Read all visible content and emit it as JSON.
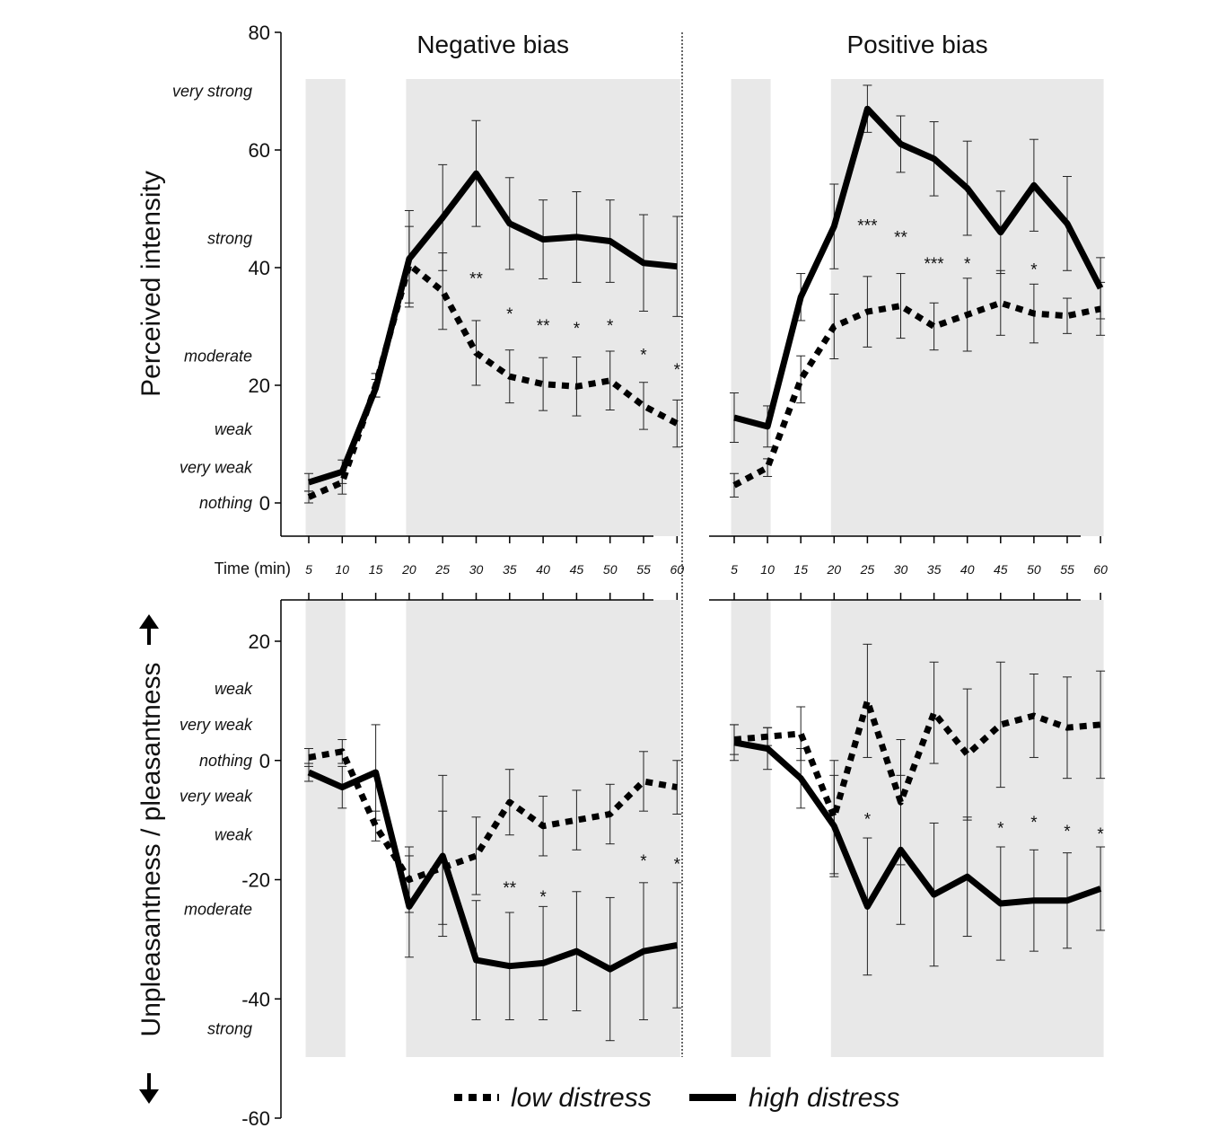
{
  "chart_data": {
    "type": "line",
    "time_label": "Time (min)",
    "x": [
      5,
      10,
      15,
      20,
      25,
      30,
      35,
      40,
      45,
      50,
      55,
      60
    ],
    "x_tick_labels": [
      "5",
      "10",
      "15",
      "20",
      "25",
      "30",
      "35",
      "40",
      "45",
      "50",
      "55",
      "60"
    ],
    "shaded_time_ranges": [
      [
        5,
        10
      ],
      [
        20,
        60
      ]
    ],
    "legend": {
      "placement": "bottom",
      "entries": [
        "low distress",
        "high distress"
      ]
    },
    "colors": {
      "shade": "#e8e8e8",
      "line": "#000000"
    },
    "columns": [
      "Negative bias",
      "Positive bias"
    ],
    "rows": [
      {
        "ylabel": "Perceived intensity",
        "ylim": [
          0,
          80
        ],
        "yticks": [
          "0",
          "20",
          "40",
          "60",
          "80"
        ],
        "qualitative_labels": [
          {
            "text": "very strong",
            "y": 70
          },
          {
            "text": "strong",
            "y": 45
          },
          {
            "text": "moderate",
            "y": 25
          },
          {
            "text": "weak",
            "y": 12.5
          },
          {
            "text": "very weak",
            "y": 6
          },
          {
            "text": "nothing",
            "y": 0
          }
        ]
      },
      {
        "ylabel": "Unpleasantness / pleasantness",
        "ylim": [
          -60,
          20
        ],
        "yticks": [
          "-60",
          "-40",
          "-20",
          "0",
          "20"
        ],
        "qualitative_labels": [
          {
            "text": "weak",
            "y": 12
          },
          {
            "text": "very weak",
            "y": 6
          },
          {
            "text": "nothing",
            "y": 0
          },
          {
            "text": "very weak",
            "y": -6
          },
          {
            "text": "weak",
            "y": -12.5
          },
          {
            "text": "moderate",
            "y": -25
          },
          {
            "text": "strong",
            "y": -45
          }
        ]
      }
    ],
    "panels": [
      {
        "title": "Negative bias",
        "row": 0,
        "col": 0,
        "series": [
          {
            "name": "low distress",
            "values": [
              1,
              3.5,
              20,
              40.5,
              36,
              25.5,
              21.5,
              20.2,
              19.8,
              20.8,
              16.5,
              13.5
            ],
            "err": [
              1,
              2,
              2,
              6.5,
              6.5,
              5.5,
              4.5,
              4.5,
              5,
              5,
              4,
              4
            ]
          },
          {
            "name": "high distress",
            "values": [
              3.5,
              5.3,
              19.5,
              41.5,
              48.5,
              56,
              47.5,
              44.8,
              45.2,
              44.5,
              40.8,
              40.2
            ],
            "err": [
              1.5,
              2,
              1.5,
              8.2,
              9,
              9,
              7.8,
              6.7,
              7.7,
              7,
              8.2,
              8.5
            ]
          }
        ],
        "significance": [
          {
            "x": 30,
            "label": "**",
            "y": 39
          },
          {
            "x": 35,
            "label": "*",
            "y": 33
          },
          {
            "x": 40,
            "label": "**",
            "y": 31
          },
          {
            "x": 45,
            "label": "*",
            "y": 30.5
          },
          {
            "x": 50,
            "label": "*",
            "y": 31
          },
          {
            "x": 55,
            "label": "*",
            "y": 26
          },
          {
            "x": 60,
            "label": "*",
            "y": 23.5
          }
        ]
      },
      {
        "title": "Positive bias",
        "row": 0,
        "col": 1,
        "series": [
          {
            "name": "low distress",
            "values": [
              3,
              6,
              21,
              30,
              32.5,
              33.5,
              30,
              32,
              34,
              32.2,
              31.8,
              33
            ],
            "err": [
              2,
              1.5,
              4,
              5.5,
              6,
              5.5,
              4,
              6.2,
              5.5,
              5,
              3,
              4.5
            ]
          },
          {
            "name": "high distress",
            "values": [
              14.5,
              13,
              35,
              47,
              67,
              61,
              58.5,
              53.5,
              46,
              54,
              47.5,
              36.5
            ],
            "err": [
              4.2,
              3.5,
              4,
              7.2,
              4,
              4.8,
              6.3,
              8,
              7,
              7.8,
              8,
              5.2
            ]
          }
        ],
        "significance": [
          {
            "x": 25,
            "label": "***",
            "y": 48
          },
          {
            "x": 30,
            "label": "**",
            "y": 46
          },
          {
            "x": 35,
            "label": "***",
            "y": 41.5
          },
          {
            "x": 40,
            "label": "*",
            "y": 41.5
          },
          {
            "x": 50,
            "label": "*",
            "y": 40.5
          }
        ]
      },
      {
        "title": "",
        "row": 1,
        "col": 0,
        "series": [
          {
            "name": "low distress",
            "values": [
              0.5,
              1.5,
              -11,
              -20,
              -18,
              -16,
              -7,
              -11,
              -10,
              -9,
              -3.5,
              -4.5
            ],
            "err": [
              1.5,
              2,
              2.5,
              5.5,
              9.5,
              6.5,
              5.5,
              5,
              5,
              5,
              5,
              4.5
            ]
          },
          {
            "name": "high distress",
            "values": [
              -2,
              -4.5,
              -2,
              -24.5,
              -16,
              -33.5,
              -34.5,
              -34,
              -32,
              -35,
              -32,
              -31
            ],
            "err": [
              1.5,
              3.5,
              8,
              8.5,
              13.5,
              10,
              9,
              9.5,
              10,
              12,
              11.5,
              10.5
            ]
          }
        ],
        "significance": [
          {
            "x": 35,
            "label": "**",
            "y": -20.5
          },
          {
            "x": 40,
            "label": "*",
            "y": -22
          },
          {
            "x": 55,
            "label": "*",
            "y": -16
          },
          {
            "x": 60,
            "label": "*",
            "y": -16.5
          }
        ]
      },
      {
        "title": "",
        "row": 1,
        "col": 1,
        "series": [
          {
            "name": "low distress",
            "values": [
              3.5,
              4,
              4.5,
              -9.5,
              10,
              -7,
              8,
              1,
              6,
              7.5,
              5.5,
              6
            ],
            "err": [
              2.5,
              1.5,
              4.5,
              9.5,
              9.5,
              10.5,
              8.5,
              11,
              10.5,
              7,
              8.5,
              9
            ]
          },
          {
            "name": "high distress",
            "values": [
              3,
              2,
              -3,
              -11,
              -24.5,
              -15,
              -22.5,
              -19.5,
              -24,
              -23.5,
              -23.5,
              -21.5
            ],
            "err": [
              3,
              3.5,
              5,
              8.5,
              11.5,
              12.5,
              12,
              10,
              9.5,
              8.5,
              8,
              7
            ]
          }
        ],
        "significance": [
          {
            "x": 25,
            "label": "*",
            "y": -9
          },
          {
            "x": 45,
            "label": "*",
            "y": -10.5
          },
          {
            "x": 50,
            "label": "*",
            "y": -9.5
          },
          {
            "x": 55,
            "label": "*",
            "y": -11
          },
          {
            "x": 60,
            "label": "*",
            "y": -11.5
          }
        ]
      }
    ]
  }
}
